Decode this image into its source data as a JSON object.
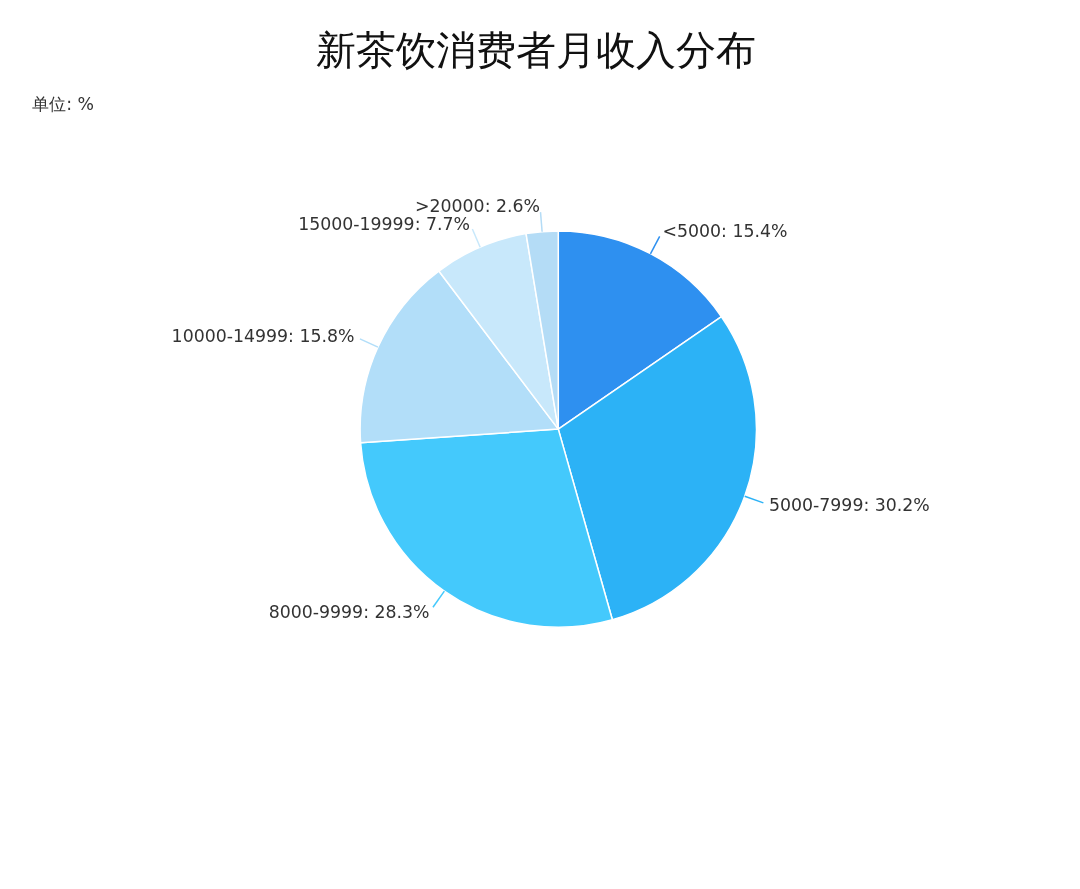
{
  "chart_data": {
    "type": "pie",
    "title": "新茶饮消费者月收入分布",
    "subtitle": "单位: %",
    "categories": [
      "<5000",
      "5000-7999",
      "8000-9999",
      "10000-14999",
      "15000-19999",
      ">20000"
    ],
    "values": [
      15.4,
      30.2,
      28.3,
      15.8,
      7.7,
      2.6
    ],
    "value_labels": [
      "15.4%",
      "30.2%",
      "28.3%",
      "15.8%",
      "7.7%",
      "2.6%"
    ],
    "colors": [
      "#2e90f0",
      "#2cb2f6",
      "#44c9fc",
      "#b2def9",
      "#c8e8fb",
      "#b4dcf6"
    ]
  }
}
